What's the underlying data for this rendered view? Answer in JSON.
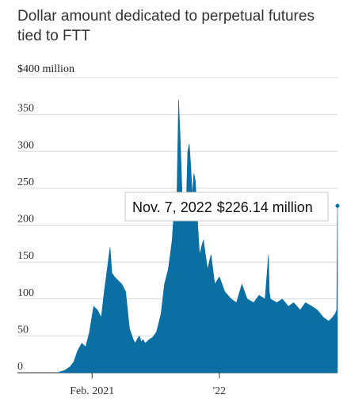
{
  "chart_data": {
    "type": "area",
    "title": "Dollar amount dedicated to perpetual futures tied to FTT",
    "unit_label": "$400 million",
    "ylim": [
      0,
      400
    ],
    "yticks": [
      "0",
      "50",
      "100",
      "150",
      "200",
      "250",
      "300",
      "350"
    ],
    "xticks": [
      {
        "label": "Feb. 2021",
        "date": "2021-02-01"
      },
      {
        "label": "'22",
        "date": "2022-01-01"
      }
    ],
    "x_start": "2020-11-01",
    "x_end": "2022-11-07",
    "color": "#0b6fa4",
    "series": [
      {
        "x": [
          "2020-11-01",
          "2020-11-20",
          "2020-12-05",
          "2020-12-15",
          "2020-12-25",
          "2021-01-05",
          "2021-01-15",
          "2021-01-25",
          "2021-02-05",
          "2021-02-15",
          "2021-02-25",
          "2021-03-05",
          "2021-03-15",
          "2021-03-20",
          "2021-03-25",
          "2021-04-01",
          "2021-04-10",
          "2021-04-20",
          "2021-04-30",
          "2021-05-10",
          "2021-05-20",
          "2021-05-25",
          "2021-05-30",
          "2021-06-05",
          "2021-06-10",
          "2021-06-15",
          "2021-06-20",
          "2021-07-01",
          "2021-07-10",
          "2021-07-20",
          "2021-08-01",
          "2021-08-10",
          "2021-08-20",
          "2021-08-25",
          "2021-08-30",
          "2021-09-04",
          "2021-09-08",
          "2021-09-12",
          "2021-09-16",
          "2021-09-20",
          "2021-09-24",
          "2021-09-28",
          "2021-10-02",
          "2021-10-06",
          "2021-10-10",
          "2021-10-14",
          "2021-10-18",
          "2021-10-22",
          "2021-10-26",
          "2021-10-30",
          "2021-11-03",
          "2021-11-10",
          "2021-11-20",
          "2021-12-01",
          "2021-12-10",
          "2021-12-20",
          "2022-01-01",
          "2022-01-15",
          "2022-02-01",
          "2022-02-15",
          "2022-03-01",
          "2022-03-15",
          "2022-04-01",
          "2022-04-15",
          "2022-05-01",
          "2022-05-10",
          "2022-05-12",
          "2022-05-15",
          "2022-06-01",
          "2022-06-15",
          "2022-07-01",
          "2022-07-15",
          "2022-08-01",
          "2022-08-15",
          "2022-09-01",
          "2022-09-15",
          "2022-10-01",
          "2022-10-15",
          "2022-10-25",
          "2022-11-01",
          "2022-11-05",
          "2022-11-07"
        ],
        "y": [
          0,
          3,
          8,
          15,
          30,
          40,
          35,
          55,
          90,
          85,
          75,
          110,
          150,
          170,
          135,
          130,
          125,
          120,
          110,
          60,
          45,
          40,
          45,
          50,
          42,
          45,
          40,
          45,
          48,
          55,
          80,
          120,
          140,
          160,
          180,
          220,
          200,
          250,
          370,
          320,
          260,
          200,
          240,
          230,
          300,
          310,
          280,
          240,
          270,
          260,
          220,
          160,
          180,
          140,
          160,
          120,
          130,
          110,
          100,
          95,
          120,
          100,
          95,
          105,
          100,
          160,
          110,
          100,
          95,
          100,
          90,
          95,
          85,
          95,
          90,
          85,
          75,
          70,
          75,
          80,
          85,
          226.14
        ]
      }
    ],
    "annotation": {
      "date_label": "Nov. 7, 2022",
      "value_label": "$226.14 million"
    }
  }
}
